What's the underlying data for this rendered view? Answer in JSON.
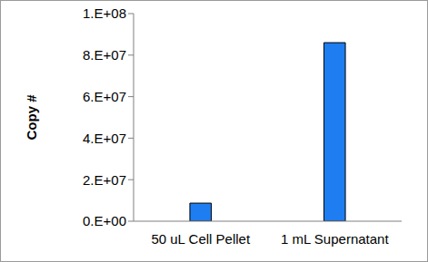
{
  "chart_data": {
    "type": "bar",
    "categories": [
      "50 uL Cell Pellet",
      "1 mL Supernatant"
    ],
    "values": [
      8700000,
      86000000
    ],
    "color": "#1e7df0",
    "y_label": "Copy #",
    "ylim": [
      0,
      100000000
    ],
    "yticks": [
      {
        "value": 0,
        "label": "0.E+00"
      },
      {
        "value": 20000000,
        "label": "2.E+07"
      },
      {
        "value": 40000000,
        "label": "4.E+07"
      },
      {
        "value": 60000000,
        "label": "6.E+07"
      },
      {
        "value": 80000000,
        "label": "8.E+07"
      },
      {
        "value": 100000000,
        "label": "1.E+08"
      }
    ],
    "grid": false
  }
}
